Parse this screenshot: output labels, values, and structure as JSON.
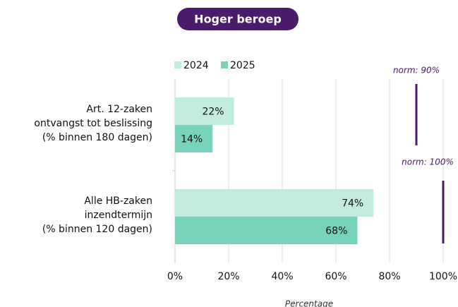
{
  "chart_data": {
    "type": "bar",
    "orientation": "horizontal",
    "title": "Hoger beroep",
    "categories": [
      [
        "Art. 12-zaken",
        "ontvangst tot beslissing",
        "(% binnen 180 dagen)"
      ],
      [
        "Alle HB-zaken",
        "inzendtermijn",
        "(% binnen 120 dagen)"
      ]
    ],
    "series": [
      {
        "name": "2024",
        "color": "#c3ece0",
        "values": [
          22,
          74
        ],
        "value_labels": [
          "22%",
          "74%"
        ]
      },
      {
        "name": "2025",
        "color": "#77d3b9",
        "values": [
          14,
          68
        ],
        "value_labels": [
          "14%",
          "68%"
        ]
      }
    ],
    "xlim": [
      0,
      100
    ],
    "xticks": [
      {
        "value": 0,
        "label": "0%"
      },
      {
        "value": 20,
        "label": "20%"
      },
      {
        "value": 40,
        "label": "40%"
      },
      {
        "value": 60,
        "label": "60%"
      },
      {
        "value": 80,
        "label": "80%"
      },
      {
        "value": 100,
        "label": "100%"
      }
    ],
    "xlabel": "Percentage",
    "grid": true,
    "legend": "top-left",
    "norms": [
      {
        "value": 90,
        "label": "norm: 90%",
        "color": "#4a1a6b"
      },
      {
        "value": 100,
        "label": "norm: 100%",
        "color": "#4a1a6b"
      }
    ],
    "title_color": "#4a1a6b"
  }
}
